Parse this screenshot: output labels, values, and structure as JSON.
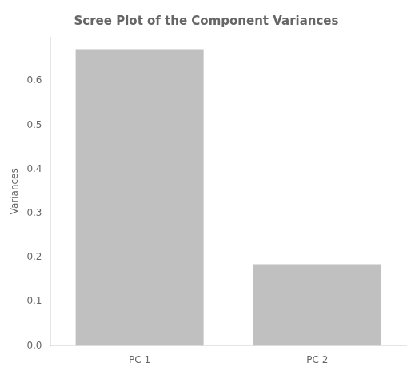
{
  "chart_data": {
    "type": "bar",
    "title": "Scree Plot of the Component Variances",
    "categories": [
      "PC 1",
      "PC 2"
    ],
    "values": [
      0.672,
      0.185
    ],
    "color": "#c0c0c0",
    "ylabel": "Variances",
    "ylim": [
      0,
      0.7
    ],
    "yticks": [
      {
        "value": 0,
        "label": "0.0"
      },
      0.1,
      0.2,
      0.3,
      0.4,
      0.5,
      0.6
    ],
    "grid": false
  }
}
